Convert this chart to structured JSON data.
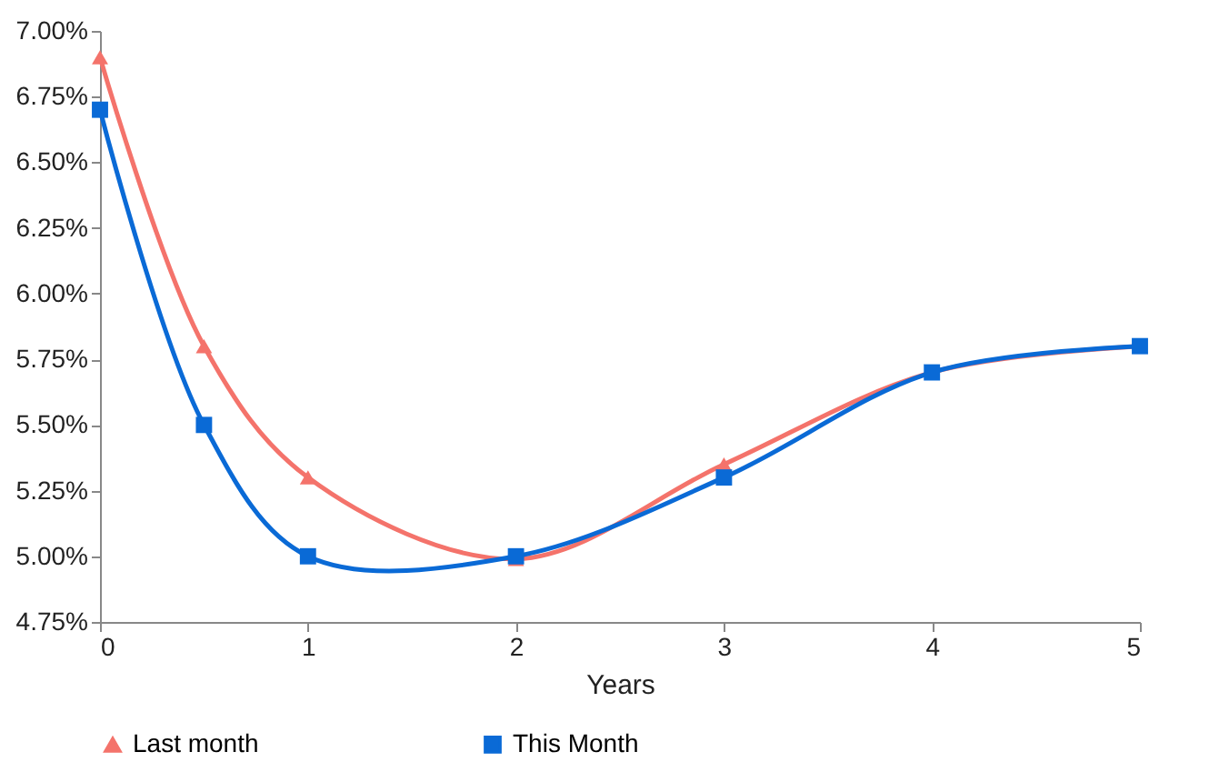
{
  "chart_data": {
    "type": "line",
    "xlabel": "Years",
    "x": [
      0,
      0.5,
      1,
      2,
      3,
      4,
      5
    ],
    "series": [
      {
        "name": "Last month",
        "color": "#f4736b",
        "marker": "triangle",
        "values": [
          6.9,
          5.8,
          5.3,
          4.99,
          5.35,
          5.7,
          5.8
        ]
      },
      {
        "name": "This Month",
        "color": "#0a6ad6",
        "marker": "square",
        "values": [
          6.7,
          5.5,
          5.0,
          5.0,
          5.3,
          5.7,
          5.8
        ]
      }
    ],
    "xlim": [
      0,
      5
    ],
    "xticks": [
      0,
      1,
      2,
      3,
      4,
      5
    ],
    "ylim": [
      4.75,
      7
    ],
    "yticks": [
      {
        "value": 4.75,
        "label": "4.75%"
      },
      {
        "value": 5,
        "label": "5.00%"
      },
      {
        "value": 5.25,
        "label": "5.25%"
      },
      {
        "value": 5.5,
        "label": "5.50%"
      },
      {
        "value": 5.75,
        "label": "5.75%"
      },
      {
        "value": 6,
        "label": "6.00%"
      },
      {
        "value": 6.25,
        "label": "6.25%"
      },
      {
        "value": 6.5,
        "label": "6.50%"
      },
      {
        "value": 6.75,
        "label": "6.75%"
      },
      {
        "value": 7,
        "label": "7.00%"
      }
    ],
    "legend": "bottom",
    "line_style": "solid",
    "grid": false
  }
}
